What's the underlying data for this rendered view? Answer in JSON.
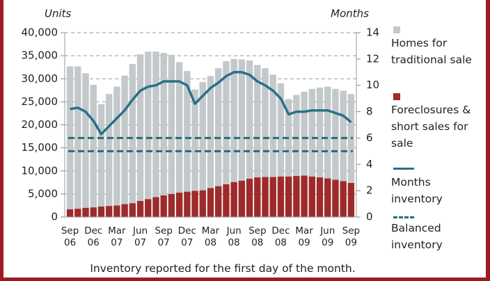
{
  "chart_data": {
    "type": "bar",
    "stacked": true,
    "y_axis_label": "Units",
    "y2_axis_label": "Months",
    "footnote": "Inventory reported for the first day of the month.",
    "categories": [
      "Sep 06",
      null,
      null,
      "Dec 06",
      null,
      null,
      "Mar 07",
      null,
      null,
      "Jun 07",
      null,
      null,
      "Sep 07",
      null,
      null,
      "Dec 07",
      null,
      null,
      "Mar 08",
      null,
      null,
      "Jun 08",
      null,
      null,
      "Sep 08",
      null,
      null,
      "Dec 08",
      null,
      null,
      "Mar 09",
      null,
      null,
      "Jun 09",
      null,
      null,
      "Sep 09"
    ],
    "series": [
      {
        "name": "Homes for traditional sale",
        "type": "bar",
        "color": "#c3c9cb",
        "values": [
          31000,
          30900,
          29200,
          26600,
          22200,
          24300,
          25800,
          27900,
          30200,
          31800,
          32000,
          31600,
          30900,
          30200,
          28300,
          26200,
          22000,
          23500,
          24300,
          25600,
          26700,
          26700,
          26300,
          25700,
          24400,
          23600,
          22200,
          20200,
          16800,
          17600,
          18200,
          19000,
          19500,
          19900,
          19700,
          19600,
          19300
        ]
      },
      {
        "name": "Foreclosures & short sales for sale",
        "type": "bar",
        "color": "#9e2b2b",
        "values": [
          1700,
          1800,
          2000,
          2100,
          2300,
          2400,
          2500,
          2800,
          3000,
          3500,
          3900,
          4300,
          4700,
          5000,
          5300,
          5500,
          5700,
          5800,
          6300,
          6700,
          7100,
          7600,
          7900,
          8300,
          8600,
          8700,
          8700,
          8800,
          8800,
          8900,
          9000,
          8800,
          8600,
          8400,
          8100,
          7800,
          7400
        ]
      },
      {
        "name": "Months inventory",
        "type": "line",
        "axis": "y2",
        "color": "#2a7089",
        "values": [
          8.2,
          8.3,
          8.0,
          7.3,
          6.3,
          6.9,
          7.5,
          8.1,
          8.9,
          9.6,
          9.9,
          10.0,
          10.3,
          10.3,
          10.3,
          10.0,
          8.6,
          9.2,
          9.8,
          10.2,
          10.7,
          11.0,
          11.0,
          10.8,
          10.3,
          10.0,
          9.6,
          9.0,
          7.8,
          8.0,
          8.0,
          8.1,
          8.1,
          8.1,
          7.9,
          7.7,
          7.2
        ]
      }
    ],
    "reference_lines": {
      "name": "Balanced inventory",
      "axis": "y2",
      "color": "#2a6a7a",
      "values": [
        5,
        6
      ]
    },
    "ylim": [
      0,
      40000
    ],
    "yticks": [
      0,
      {
        "value": 5000,
        "label": "5,000"
      },
      {
        "value": 10000,
        "label": "10,000"
      },
      {
        "value": 15000,
        "label": "15,000"
      },
      {
        "value": 20000,
        "label": "20,000"
      },
      {
        "value": 25000,
        "label": "25,000"
      },
      {
        "value": 30000,
        "label": "30,000"
      },
      {
        "value": 35000,
        "label": "35,000"
      },
      {
        "value": 40000,
        "label": "40,000"
      }
    ],
    "y2lim": [
      0,
      14
    ],
    "y2ticks": [
      0,
      2,
      4,
      6,
      8,
      10,
      12,
      14
    ],
    "grid": true
  }
}
